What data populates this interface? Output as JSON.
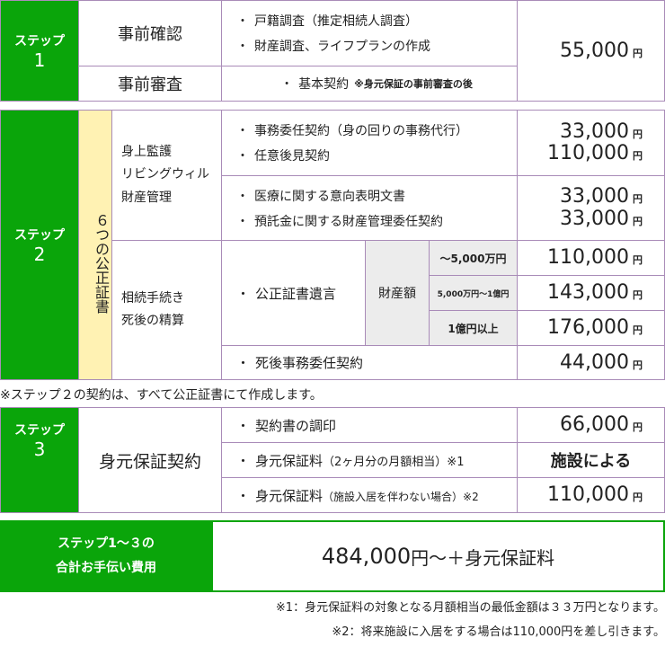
{
  "step1": {
    "step_label": "ステップ",
    "step_num": "1",
    "rows": [
      {
        "label": "事前確認",
        "items": [
          "戸籍調査（推定相続人調査）",
          "財産調査、ライフプランの作成"
        ]
      },
      {
        "label": "事前審査",
        "item": "基本契約",
        "note": "※身元保証の事前審査の後"
      }
    ],
    "price": "55,000",
    "unit": "円"
  },
  "step2": {
    "step_label": "ステップ",
    "step_num": "2",
    "vertical_label": "６つの公正証書",
    "group1_label": [
      "身上監護",
      "リビングウィル",
      "財産管理"
    ],
    "row1": {
      "items": [
        "事務委任契約（身の回りの事務代行）",
        "任意後見契約"
      ],
      "prices": [
        "33,000",
        "110,000"
      ]
    },
    "row2": {
      "items": [
        "医療に関する意向表明文書",
        "預託金に関する財産管理委任契約"
      ],
      "prices": [
        "33,000",
        "33,000"
      ]
    },
    "group2_label": [
      "相続手続き",
      "死後の精算"
    ],
    "will": {
      "item": "公正証書遺言",
      "asset_label": "財産額",
      "tiers": [
        {
          "range": "〜5,000万円",
          "price": "110,000"
        },
        {
          "range": "5,000万円〜1億円",
          "price": "143,000"
        },
        {
          "range": "1億円以上",
          "price": "176,000"
        }
      ]
    },
    "posthumous": {
      "item": "死後事務委任契約",
      "price": "44,000"
    },
    "unit": "円"
  },
  "note_step2": "※ステップ２の契約は、すべて公正証書にて作成します。",
  "step3": {
    "step_label": "ステップ",
    "step_num": "3",
    "label": "身元保証契約",
    "rows": [
      {
        "item": "契約書の調印",
        "price": "66,000",
        "unit": "円"
      },
      {
        "item": "身元保証料",
        "sub": "（2ヶ月分の月額相当）※1",
        "price": "施設による"
      },
      {
        "item": "身元保証料",
        "sub": "（施設入居を伴わない場合）※2",
        "price": "110,000",
        "unit": "円"
      }
    ]
  },
  "total": {
    "label_line1": "ステップ1〜３の",
    "label_line2": "合計お手伝い費用",
    "amount": "484,000",
    "unit": "円〜＋身元保証料"
  },
  "footnotes": [
    "※1：身元保証料の対象となる月額相当の最低金額は３３万円となります。",
    "※2：将来施設に入居をする場合は110,000円を差し引きます。"
  ],
  "colors": {
    "green": "#0aa50a",
    "yellow": "#fff2b3",
    "border": "#a98bb8"
  }
}
